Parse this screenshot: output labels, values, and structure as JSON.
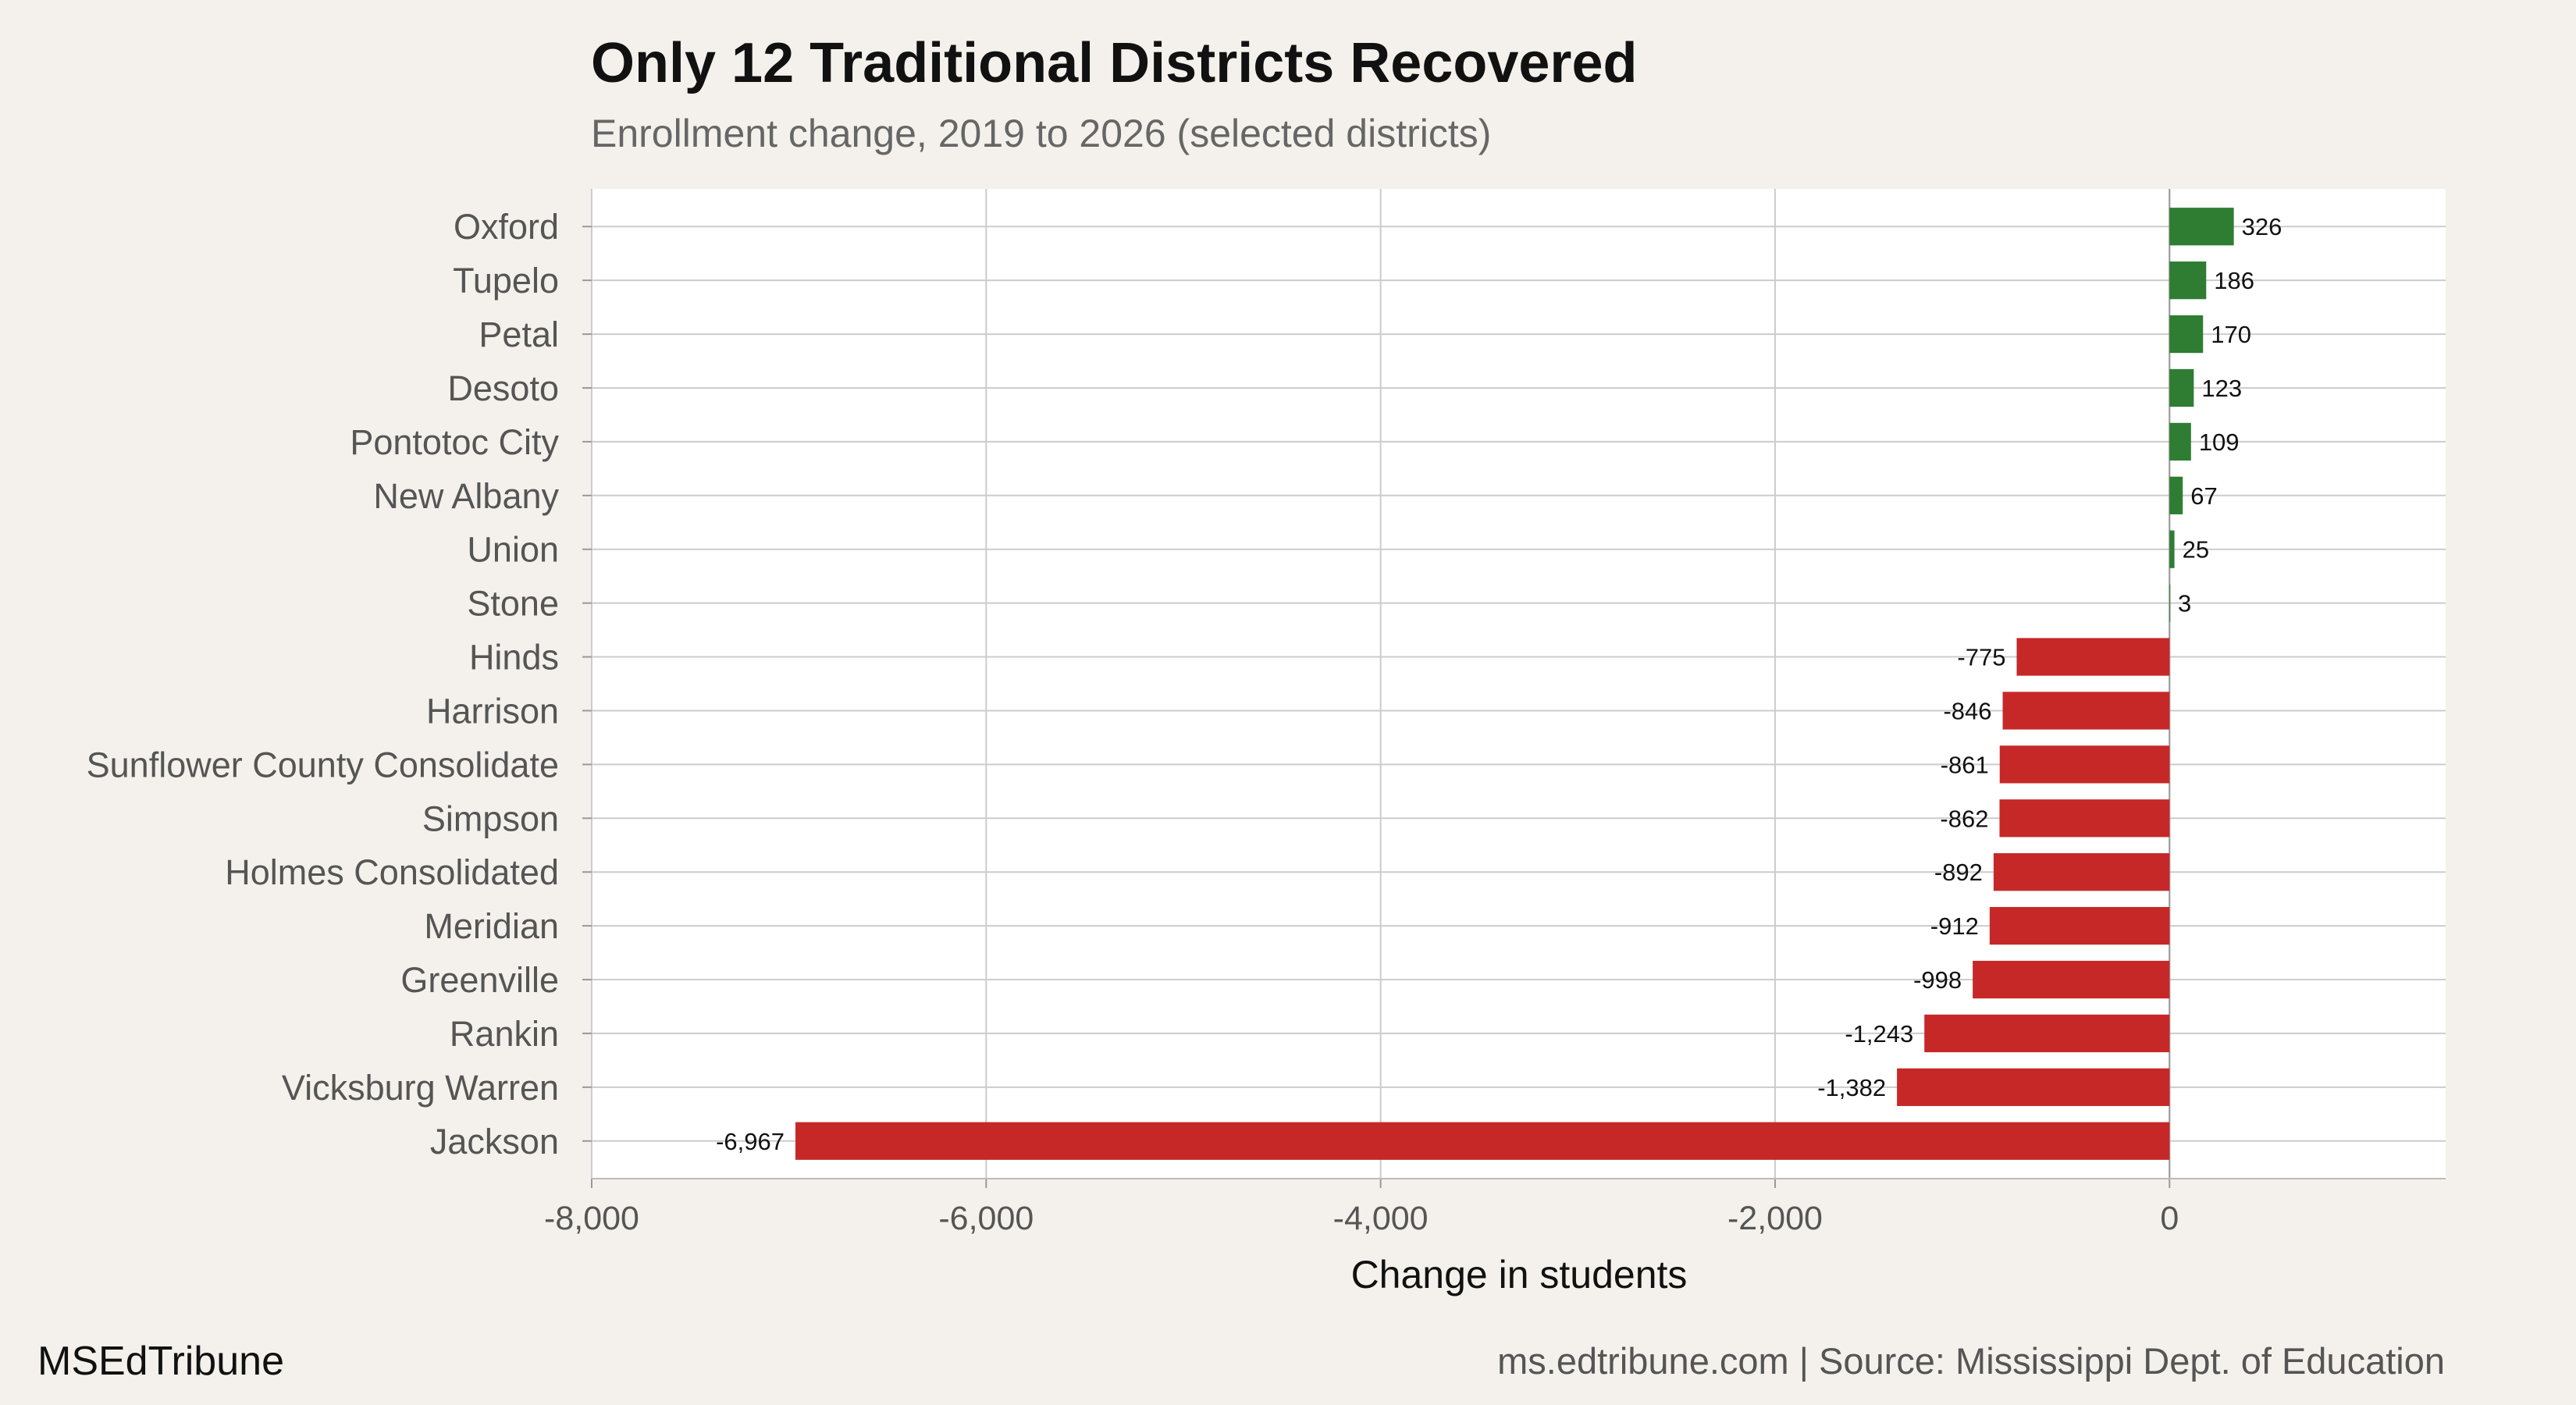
{
  "title": "Only 12 Traditional Districts Recovered",
  "subtitle": "Enrollment change, 2019 to 2026 (selected districts)",
  "brand": "MSEdTribune",
  "source": "ms.edtribune.com | Source: Mississippi Dept. of Education",
  "colors": {
    "positive": "#2e7d32",
    "negative": "#c62828",
    "panel": "#ffffff",
    "background": "#f4f1ec",
    "grid": "#cccccc"
  },
  "chart_data": {
    "type": "bar",
    "orientation": "horizontal",
    "title": "Only 12 Traditional Districts Recovered",
    "subtitle": "Enrollment change, 2019 to 2026 (selected districts)",
    "xlabel": "Change in students",
    "ylabel": "",
    "xlim": [
      -8000,
      1400
    ],
    "xticks": [
      -8000,
      -6000,
      -4000,
      -2000,
      0
    ],
    "xtick_labels": [
      "-8,000",
      "-6,000",
      "-4,000",
      "-2,000",
      "0"
    ],
    "grid": true,
    "categories": [
      "Oxford",
      "Tupelo",
      "Petal",
      "Desoto",
      "Pontotoc City",
      "New Albany",
      "Union",
      "Stone",
      "Hinds",
      "Harrison",
      "Sunflower County Consolidate",
      "Simpson",
      "Holmes Consolidated",
      "Meridian",
      "Greenville",
      "Rankin",
      "Vicksburg Warren",
      "Jackson"
    ],
    "values": [
      326,
      186,
      170,
      123,
      109,
      67,
      25,
      3,
      -775,
      -846,
      -861,
      -862,
      -892,
      -912,
      -998,
      -1243,
      -1382,
      -6967
    ],
    "value_labels": [
      "326",
      "186",
      "170",
      "123",
      "109",
      "67",
      "25",
      "3",
      "-775",
      "-846",
      "-861",
      "-862",
      "-892",
      "-912",
      "-998",
      "-1,243",
      "-1,382",
      "-6,967"
    ]
  }
}
